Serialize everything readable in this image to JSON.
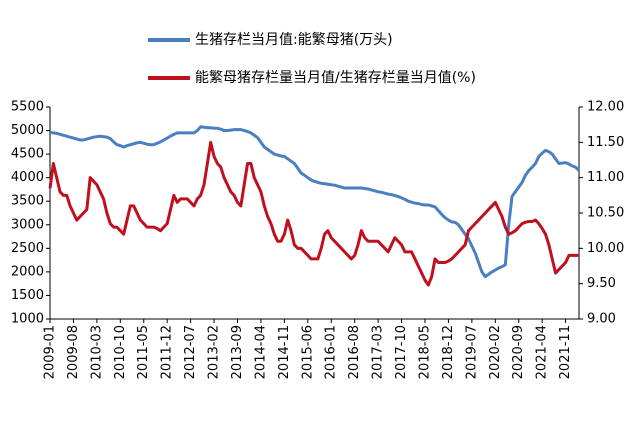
{
  "chart_data": {
    "type": "line",
    "categories": [
      "2009-01",
      null,
      null,
      null,
      null,
      null,
      null,
      "2009-08",
      null,
      null,
      null,
      null,
      null,
      null,
      "2010-03",
      null,
      null,
      null,
      null,
      null,
      null,
      "2010-10",
      null,
      null,
      null,
      null,
      null,
      null,
      "2011-05",
      null,
      null,
      null,
      null,
      null,
      null,
      "2011-12",
      null,
      null,
      null,
      null,
      null,
      null,
      "2012-07",
      null,
      null,
      null,
      null,
      null,
      null,
      "2013-02",
      null,
      null,
      null,
      null,
      null,
      null,
      "2013-09",
      null,
      null,
      null,
      null,
      null,
      null,
      "2014-04",
      null,
      null,
      null,
      null,
      null,
      null,
      "2014-11",
      null,
      null,
      null,
      null,
      null,
      null,
      "2015-06",
      null,
      null,
      null,
      null,
      null,
      null,
      "2016-01",
      null,
      null,
      null,
      null,
      null,
      null,
      "2016-08",
      null,
      null,
      null,
      null,
      null,
      null,
      "2017-03",
      null,
      null,
      null,
      null,
      null,
      null,
      "2017-10",
      null,
      null,
      null,
      null,
      null,
      null,
      "2018-05",
      null,
      null,
      null,
      null,
      null,
      null,
      "2018-12",
      null,
      null,
      null,
      null,
      null,
      null,
      "2019-07",
      null,
      null,
      null,
      null,
      null,
      null,
      "2020-02",
      null,
      null,
      null,
      null,
      null,
      null,
      "2020-09",
      null,
      null,
      null,
      null,
      null,
      null,
      "2021-04",
      null,
      null,
      null,
      null,
      null,
      null,
      "2021-11",
      null,
      null,
      null,
      null
    ],
    "series": [
      {
        "name": "生猪存栏当月值:能繁母猪(万头)",
        "color": "#4a7fc1",
        "values": [
          4960,
          4950,
          4940,
          4920,
          4900,
          4880,
          4860,
          4840,
          4820,
          4800,
          4800,
          4820,
          4840,
          4860,
          4870,
          4880,
          4870,
          4860,
          4830,
          4760,
          4700,
          4680,
          4650,
          4680,
          4700,
          4720,
          4740,
          4750,
          4730,
          4710,
          4700,
          4700,
          4730,
          4760,
          4800,
          4840,
          4880,
          4920,
          4950,
          4950,
          4950,
          4950,
          4950,
          4950,
          5000,
          5080,
          5070,
          5060,
          5060,
          5050,
          5050,
          5030,
          5000,
          5000,
          5010,
          5020,
          5020,
          5020,
          5000,
          4980,
          4950,
          4900,
          4850,
          4750,
          4650,
          4600,
          4550,
          4500,
          4480,
          4460,
          4450,
          4400,
          4350,
          4300,
          4200,
          4100,
          4050,
          4000,
          3950,
          3920,
          3900,
          3880,
          3870,
          3860,
          3850,
          3840,
          3820,
          3800,
          3780,
          3780,
          3780,
          3780,
          3780,
          3780,
          3770,
          3760,
          3740,
          3720,
          3700,
          3690,
          3670,
          3650,
          3640,
          3620,
          3600,
          3570,
          3540,
          3500,
          3480,
          3460,
          3450,
          3430,
          3420,
          3420,
          3400,
          3380,
          3300,
          3220,
          3150,
          3100,
          3060,
          3050,
          3000,
          2900,
          2800,
          2700,
          2550,
          2400,
          2200,
          2000,
          1900,
          1950,
          2000,
          2040,
          2080,
          2110,
          2150,
          3000,
          3600,
          3700,
          3800,
          3900,
          4050,
          4150,
          4220,
          4300,
          4450,
          4520,
          4580,
          4550,
          4500,
          4400,
          4300,
          4310,
          4320,
          4290,
          4250,
          4220,
          4150
        ]
      },
      {
        "name": "能繁母猪存栏量当月值/生猪存栏量当月值(%)",
        "color": "#c0101e",
        "axis": "y2",
        "values": [
          10.85,
          11.2,
          11.0,
          10.8,
          10.75,
          10.75,
          10.6,
          10.5,
          10.4,
          10.45,
          10.5,
          10.55,
          11.0,
          10.95,
          10.9,
          10.8,
          10.7,
          10.5,
          10.35,
          10.3,
          10.3,
          10.25,
          10.2,
          10.4,
          10.6,
          10.6,
          10.5,
          10.4,
          10.35,
          10.3,
          10.3,
          10.3,
          10.28,
          10.25,
          10.3,
          10.35,
          10.55,
          10.75,
          10.65,
          10.7,
          10.7,
          10.7,
          10.65,
          10.6,
          10.7,
          10.75,
          10.9,
          11.2,
          11.5,
          11.3,
          11.2,
          11.15,
          11.0,
          10.9,
          10.8,
          10.75,
          10.65,
          10.6,
          10.9,
          11.2,
          11.2,
          11.0,
          10.9,
          10.8,
          10.6,
          10.45,
          10.35,
          10.2,
          10.1,
          10.1,
          10.2,
          10.4,
          10.25,
          10.05,
          10.0,
          10.0,
          9.95,
          9.9,
          9.85,
          9.85,
          9.85,
          10.0,
          10.2,
          10.25,
          10.15,
          10.1,
          10.05,
          10.0,
          9.95,
          9.9,
          9.85,
          9.9,
          10.05,
          10.25,
          10.15,
          10.1,
          10.1,
          10.1,
          10.1,
          10.05,
          10.0,
          9.95,
          10.05,
          10.15,
          10.1,
          10.05,
          9.95,
          9.95,
          9.95,
          9.85,
          9.75,
          9.65,
          9.55,
          9.48,
          9.6,
          9.85,
          9.8,
          9.8,
          9.8,
          9.82,
          9.85,
          9.9,
          9.95,
          10.0,
          10.05,
          10.25,
          10.3,
          10.35,
          10.4,
          10.45,
          10.5,
          10.55,
          10.6,
          10.65,
          10.55,
          10.45,
          10.3,
          10.2,
          10.22,
          10.25,
          10.3,
          10.35,
          10.37,
          10.38,
          10.38,
          10.4,
          10.35,
          10.28,
          10.2,
          10.05,
          9.85,
          9.65,
          9.7,
          9.75,
          9.8,
          9.9,
          9.9,
          9.9,
          9.9
        ]
      }
    ],
    "ylim": [
      1000,
      5500
    ],
    "yticks": [
      1000,
      1500,
      2000,
      2500,
      3000,
      3500,
      4000,
      4500,
      5000,
      5500
    ],
    "y2lim": [
      9,
      12
    ],
    "y2ticks": [
      {
        "value": 9,
        "label": "9.00"
      },
      {
        "value": 9.5,
        "label": "9.50"
      },
      {
        "value": 10,
        "label": "10.00"
      },
      {
        "value": 10.5,
        "label": "10.50"
      },
      {
        "value": 11,
        "label": "11.00"
      },
      {
        "value": 11.5,
        "label": "11.50"
      },
      {
        "value": 12,
        "label": "12.00"
      }
    ],
    "grid": false
  }
}
